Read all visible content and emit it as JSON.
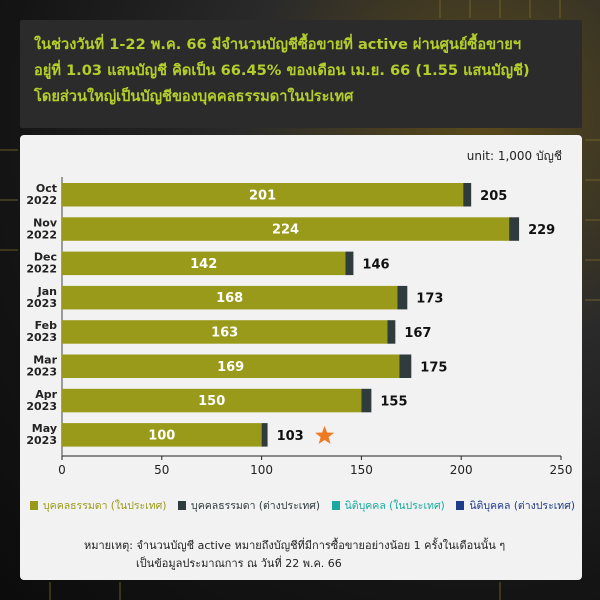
{
  "header": {
    "line1": "ในช่วงวันที่ 1-22 พ.ค. 66 มีจำนวนบัญชีซื้อขายที่ active ผ่านศูนย์ซื้อขายฯ",
    "line2": "อยู่ที่ 1.03 แสนบัญชี คิดเป็น 66.45% ของเดือน เม.ย. 66 (1.55 แสนบัญชี)",
    "line3": "โดยส่วนใหญ่เป็นบัญชีของบุคคลธรรมดาในประเทศ"
  },
  "unit_label": "unit: 1,000 บัญชี",
  "note": {
    "line1": "หมายเหตุ: จำนวนบัญชี active หมายถึงบัญชีที่มีการซื้อขายอย่างน้อย 1 ครั้งในเดือนนั้น ๆ",
    "line2": "เป็นข้อมูลประมาณการ ณ วันที่ 22 พ.ค. 66"
  },
  "colors": {
    "domestic_individual": "#9a9a1a",
    "foreign_individual": "#2f3b3d",
    "domestic_juristic": "#1aa9a0",
    "foreign_juristic": "#1f3c8c",
    "star": "#f07a24",
    "header_text": "#b4cf2b"
  },
  "chart_data": {
    "type": "bar",
    "orientation": "horizontal",
    "stacked": true,
    "categories": [
      [
        "Oct",
        "2022"
      ],
      [
        "Nov",
        "2022"
      ],
      [
        "Dec",
        "2022"
      ],
      [
        "Jan",
        "2023"
      ],
      [
        "Feb",
        "2023"
      ],
      [
        "Mar",
        "2023"
      ],
      [
        "Apr",
        "2023"
      ],
      [
        "May",
        "2023"
      ]
    ],
    "series": [
      {
        "name": "บุคคลธรรมดา (ในประเทศ)",
        "values": [
          201,
          224,
          142,
          168,
          163,
          169,
          150,
          100
        ]
      },
      {
        "name": "บุคคลธรรมดา (ต่างประเทศ)",
        "values": [
          4,
          5,
          4,
          5,
          4,
          6,
          5,
          3
        ]
      },
      {
        "name": "นิติบุคคล (ในประเทศ)",
        "values": [
          0,
          0,
          0,
          0,
          0,
          0,
          0,
          0
        ]
      },
      {
        "name": "นิติบุคคล (ต่างประเทศ)",
        "values": [
          0,
          0,
          0,
          0,
          0,
          0,
          0,
          0
        ]
      }
    ],
    "inner_labels": [
      "201",
      "224",
      "142",
      "168",
      "163",
      "169",
      "150",
      "100"
    ],
    "totals": [
      "205",
      "229",
      "146",
      "173",
      "167",
      "175",
      "155",
      "103"
    ],
    "xlim": [
      0,
      250
    ],
    "xticks": [
      "0",
      "50",
      "100",
      "150",
      "200",
      "250"
    ],
    "highlight": "star on May 2023",
    "grid": false,
    "legend_position": "bottom"
  }
}
